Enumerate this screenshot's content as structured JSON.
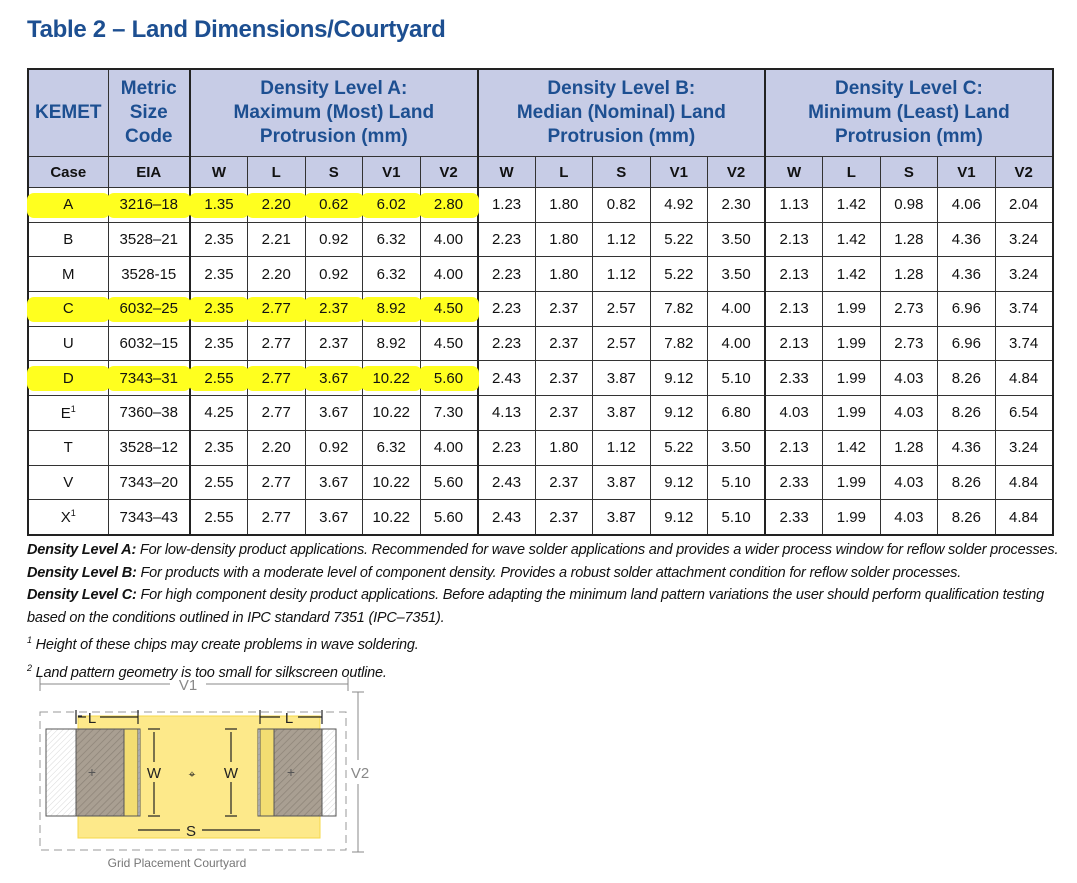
{
  "title": "Table 2 – Land Dimensions/Courtyard",
  "header": {
    "kemet": "KEMET",
    "metric": [
      "Metric",
      "Size",
      "Code"
    ],
    "levels": [
      [
        "Density Level A:",
        "Maximum (Most) Land",
        "Protrusion (mm)"
      ],
      [
        "Density Level B:",
        "Median (Nominal) Land",
        "Protrusion (mm)"
      ],
      [
        "Density Level C:",
        "Minimum (Least) Land",
        "Protrusion (mm)"
      ]
    ],
    "case": "Case",
    "eia": "EIA",
    "cols": [
      "W",
      "L",
      "S",
      "V1",
      "V2"
    ]
  },
  "highlight_color": "#ffff1f",
  "rows": [
    {
      "case": "A",
      "sup": "",
      "eia": "3216–18",
      "highlight": true,
      "a": [
        "1.35",
        "2.20",
        "0.62",
        "6.02",
        "2.80"
      ],
      "b": [
        "1.23",
        "1.80",
        "0.82",
        "4.92",
        "2.30"
      ],
      "c": [
        "1.13",
        "1.42",
        "0.98",
        "4.06",
        "2.04"
      ]
    },
    {
      "case": "B",
      "sup": "",
      "eia": "3528–21",
      "highlight": false,
      "a": [
        "2.35",
        "2.21",
        "0.92",
        "6.32",
        "4.00"
      ],
      "b": [
        "2.23",
        "1.80",
        "1.12",
        "5.22",
        "3.50"
      ],
      "c": [
        "2.13",
        "1.42",
        "1.28",
        "4.36",
        "3.24"
      ]
    },
    {
      "case": "M",
      "sup": "",
      "eia": "3528-15",
      "highlight": false,
      "a": [
        "2.35",
        "2.20",
        "0.92",
        "6.32",
        "4.00"
      ],
      "b": [
        "2.23",
        "1.80",
        "1.12",
        "5.22",
        "3.50"
      ],
      "c": [
        "2.13",
        "1.42",
        "1.28",
        "4.36",
        "3.24"
      ]
    },
    {
      "case": "C",
      "sup": "",
      "eia": "6032–25",
      "highlight": true,
      "a": [
        "2.35",
        "2.77",
        "2.37",
        "8.92",
        "4.50"
      ],
      "b": [
        "2.23",
        "2.37",
        "2.57",
        "7.82",
        "4.00"
      ],
      "c": [
        "2.13",
        "1.99",
        "2.73",
        "6.96",
        "3.74"
      ]
    },
    {
      "case": "U",
      "sup": "",
      "eia": "6032–15",
      "highlight": false,
      "a": [
        "2.35",
        "2.77",
        "2.37",
        "8.92",
        "4.50"
      ],
      "b": [
        "2.23",
        "2.37",
        "2.57",
        "7.82",
        "4.00"
      ],
      "c": [
        "2.13",
        "1.99",
        "2.73",
        "6.96",
        "3.74"
      ]
    },
    {
      "case": "D",
      "sup": "",
      "eia": "7343–31",
      "highlight": true,
      "a": [
        "2.55",
        "2.77",
        "3.67",
        "10.22",
        "5.60"
      ],
      "b": [
        "2.43",
        "2.37",
        "3.87",
        "9.12",
        "5.10"
      ],
      "c": [
        "2.33",
        "1.99",
        "4.03",
        "8.26",
        "4.84"
      ]
    },
    {
      "case": "E",
      "sup": "1",
      "eia": "7360–38",
      "highlight": false,
      "a": [
        "4.25",
        "2.77",
        "3.67",
        "10.22",
        "7.30"
      ],
      "b": [
        "4.13",
        "2.37",
        "3.87",
        "9.12",
        "6.80"
      ],
      "c": [
        "4.03",
        "1.99",
        "4.03",
        "8.26",
        "6.54"
      ]
    },
    {
      "case": "T",
      "sup": "",
      "eia": "3528–12",
      "highlight": false,
      "a": [
        "2.35",
        "2.20",
        "0.92",
        "6.32",
        "4.00"
      ],
      "b": [
        "2.23",
        "1.80",
        "1.12",
        "5.22",
        "3.50"
      ],
      "c": [
        "2.13",
        "1.42",
        "1.28",
        "4.36",
        "3.24"
      ]
    },
    {
      "case": "V",
      "sup": "",
      "eia": "7343–20",
      "highlight": false,
      "a": [
        "2.55",
        "2.77",
        "3.67",
        "10.22",
        "5.60"
      ],
      "b": [
        "2.43",
        "2.37",
        "3.87",
        "9.12",
        "5.10"
      ],
      "c": [
        "2.33",
        "1.99",
        "4.03",
        "8.26",
        "4.84"
      ]
    },
    {
      "case": "X",
      "sup": "1",
      "eia": "7343–43",
      "highlight": false,
      "a": [
        "2.55",
        "2.77",
        "3.67",
        "10.22",
        "5.60"
      ],
      "b": [
        "2.43",
        "2.37",
        "3.87",
        "9.12",
        "5.10"
      ],
      "c": [
        "2.33",
        "1.99",
        "4.03",
        "8.26",
        "4.84"
      ]
    }
  ],
  "notes": [
    {
      "label": "Density Level A:",
      "text": " For low-density product applications. Recommended for wave solder applications and provides a wider process window for reflow solder processes."
    },
    {
      "label": "Density Level B:",
      "text": " For products with a moderate level of component density. Provides a robust solder attachment condition for reflow solder processes."
    },
    {
      "label": "Density Level C:",
      "text": " For high component desity product applications. Before adapting the minimum land pattern variations the user should perform qualification testing based on the conditions outlined in IPC standard 7351 (IPC–7351)."
    }
  ],
  "footnotes": [
    {
      "mark": "1",
      "text": " Height of these chips may create problems in wave soldering."
    },
    {
      "mark": "2",
      "text": " Land pattern geometry is too small for silkscreen outline."
    }
  ],
  "figure": {
    "v1_label": "V1",
    "v2_label": "V2",
    "l_label": "L",
    "w_label": "W",
    "s_label": "S",
    "caption": "Grid Placement Courtyard"
  }
}
